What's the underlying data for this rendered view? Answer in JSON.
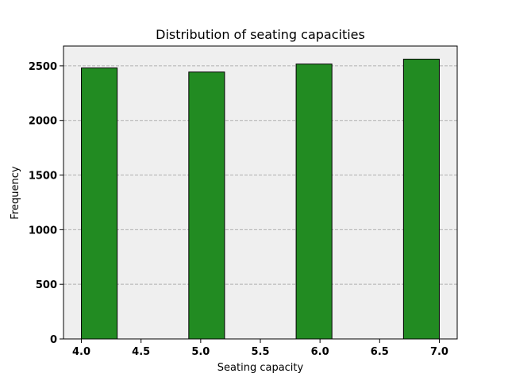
{
  "chart_data": {
    "type": "bar",
    "title": "Distribution of seating capacities",
    "xlabel": "Seating capacity",
    "ylabel": "Frequency",
    "bins": [
      {
        "x0": 4.0,
        "x1": 4.3,
        "value": 2480
      },
      {
        "x0": 4.9,
        "x1": 5.2,
        "value": 2443
      },
      {
        "x0": 5.8,
        "x1": 6.1,
        "value": 2516
      },
      {
        "x0": 6.7,
        "x1": 7.0,
        "value": 2561
      }
    ],
    "xlim": [
      3.85,
      7.15
    ],
    "ylim": [
      0,
      2681
    ],
    "xticks": [
      "4.0",
      "4.5",
      "5.0",
      "5.5",
      "6.0",
      "6.5",
      "7.0"
    ],
    "yticks": [
      "0",
      "500",
      "1000",
      "1500",
      "2000",
      "2500"
    ],
    "grid": "y-dashed",
    "colors": {
      "bar": "#228b22",
      "edge": "#000000",
      "plot_background": "#efefef",
      "grid": "#b0b0b0"
    }
  }
}
